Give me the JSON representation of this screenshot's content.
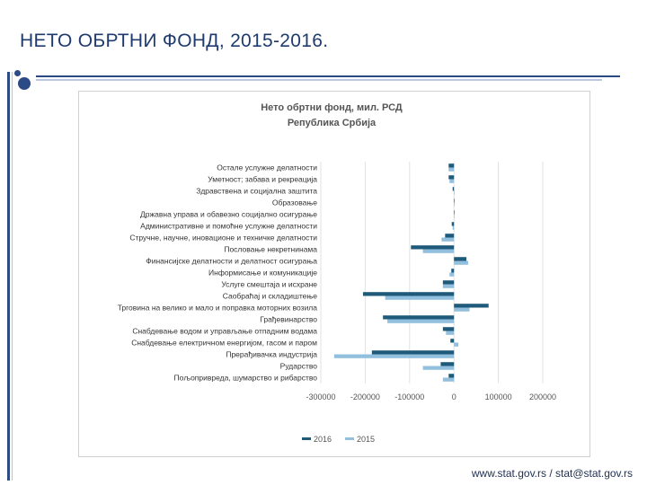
{
  "slide": {
    "title": "НЕТО ОБРТНИ ФОНД, 2015-2016.",
    "footer": "www.stat.gov.rs / stat@stat.gov.rs"
  },
  "chart_data": {
    "type": "bar",
    "orientation": "horizontal",
    "title": "Нето обртни фонд, мил. РСД",
    "subtitle": "Република Србија",
    "xlabel": "",
    "ylabel": "",
    "xlim": [
      -300000,
      200000
    ],
    "x_ticks": [
      -300000,
      -200000,
      -100000,
      0,
      100000,
      200000
    ],
    "x_tick_labels": [
      "-300000",
      "-200000",
      "-100000",
      "0",
      "100000",
      "200000"
    ],
    "grid": "vertical",
    "legend_position": "bottom",
    "categories": [
      "Остале услужне делатности",
      "Уметност; забава и рекреација",
      "Здравствена и социјална заштита",
      "Образовање",
      "Државна управа и обавезно социјално осигурање",
      "Административне и помоћне услужне делатности",
      "Стручне, научне, иновационе и техничке делатности",
      "Пословање некретнинама",
      "Финансијске делатности и делатност осигурања",
      "Информисање и комуникације",
      "Услуге смештаја и исхране",
      "Саобраћај и складиштење",
      "Трговина на велико и мало и поправка моторних возила",
      "Грађевинарство",
      "Снабдевање водом и управљање отпадним водама",
      "Снабдевање електричном енергијом, гасом и паром",
      "Прерађивачка индустрија",
      "Рударство",
      "Пољопривреда, шумарство и рибарство"
    ],
    "series": [
      {
        "name": "2016",
        "color": "#1f5a7a",
        "values": [
          -12000,
          -12000,
          -3000,
          0,
          0,
          -5000,
          -20000,
          -97000,
          28000,
          -6000,
          -25000,
          -205000,
          78000,
          -160000,
          -25000,
          -8000,
          -185000,
          -30000,
          -12000
        ]
      },
      {
        "name": "2015",
        "color": "#92bfdd",
        "values": [
          -12000,
          -10000,
          0,
          0,
          0,
          -3000,
          -28000,
          -70000,
          32000,
          -10000,
          -25000,
          -155000,
          35000,
          -150000,
          -18000,
          10000,
          -270000,
          -70000,
          -25000
        ]
      }
    ]
  }
}
